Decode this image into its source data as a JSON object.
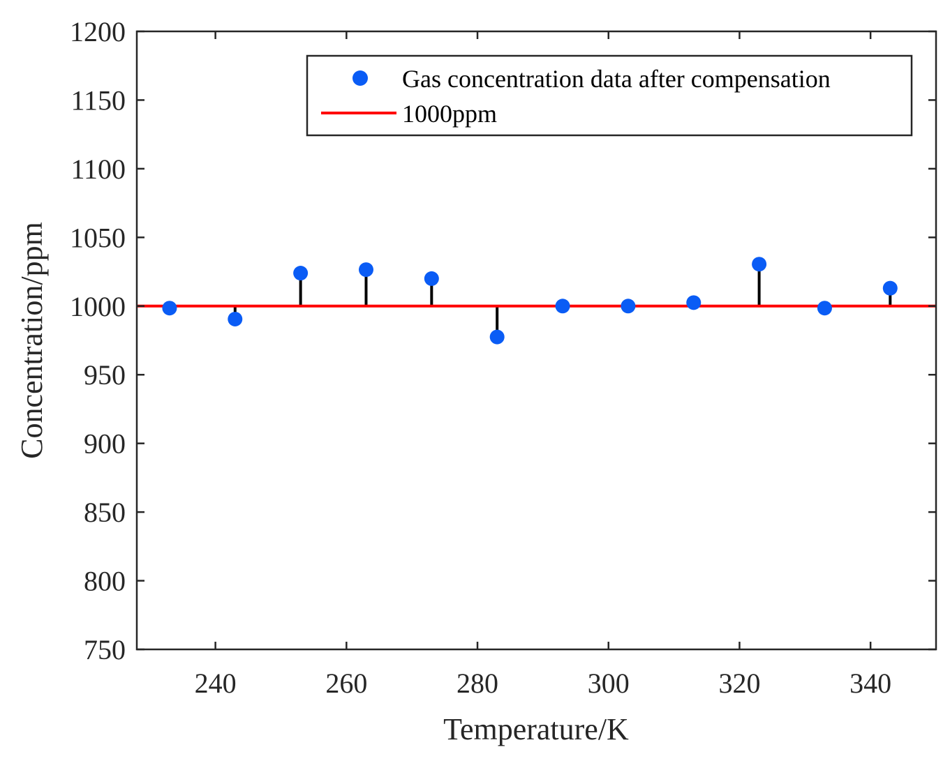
{
  "chart_data": {
    "type": "scatter",
    "title": "",
    "xlabel": "Temperature/K",
    "ylabel": "Concentration/ppm",
    "xlim": [
      228,
      350
    ],
    "ylim": [
      750,
      1200
    ],
    "xticks": [
      240,
      260,
      280,
      300,
      320,
      340
    ],
    "yticks": [
      750,
      800,
      850,
      900,
      950,
      1000,
      1050,
      1100,
      1150,
      1200
    ],
    "grid": false,
    "legend_position": "top-right",
    "series": [
      {
        "name": "Gas concentration data after compensation",
        "kind": "scatter",
        "color": "#0a5cf5",
        "x": [
          233,
          243,
          253,
          263,
          273,
          283,
          293,
          303,
          313,
          323,
          333,
          343
        ],
        "y": [
          998.5,
          990.5,
          1024,
          1026.5,
          1020,
          977.5,
          1000,
          1000,
          1002.5,
          1030.5,
          998.5,
          1013
        ]
      },
      {
        "name": "1000ppm",
        "kind": "hline",
        "color": "#ff0000",
        "y": 1000
      }
    ],
    "error_stems": {
      "color": "#000000",
      "reference": 1000
    }
  }
}
